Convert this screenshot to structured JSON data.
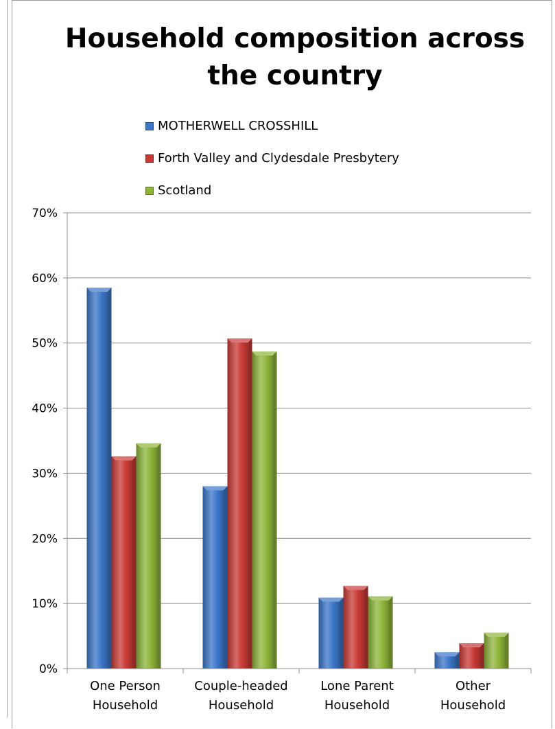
{
  "chart_data": {
    "type": "bar",
    "title_lines": [
      "Household composition across",
      "the country"
    ],
    "categories": [
      [
        "One Person",
        "Household"
      ],
      [
        "Couple-headed",
        "Household"
      ],
      [
        "Lone Parent",
        "Household"
      ],
      [
        "Other",
        "Household"
      ]
    ],
    "series": [
      {
        "name": "MOTHERWELL CROSSHILL",
        "values": [
          58.5,
          28.0,
          10.9,
          2.5
        ],
        "color": "#3b76c9"
      },
      {
        "name": "Forth Valley and Clydesdale Presbytery",
        "values": [
          32.6,
          50.7,
          12.7,
          3.9
        ],
        "color": "#c93a36"
      },
      {
        "name": "Scotland",
        "values": [
          34.6,
          48.7,
          11.1,
          5.5
        ],
        "color": "#8fb43a"
      }
    ],
    "ylim": [
      0,
      70
    ],
    "yticks": [
      0,
      10,
      20,
      30,
      40,
      50,
      60,
      70
    ],
    "ytick_labels": [
      "0%",
      "10%",
      "20%",
      "30%",
      "40%",
      "50%",
      "60%",
      "70%"
    ],
    "grid": true,
    "legend_position": "top"
  }
}
